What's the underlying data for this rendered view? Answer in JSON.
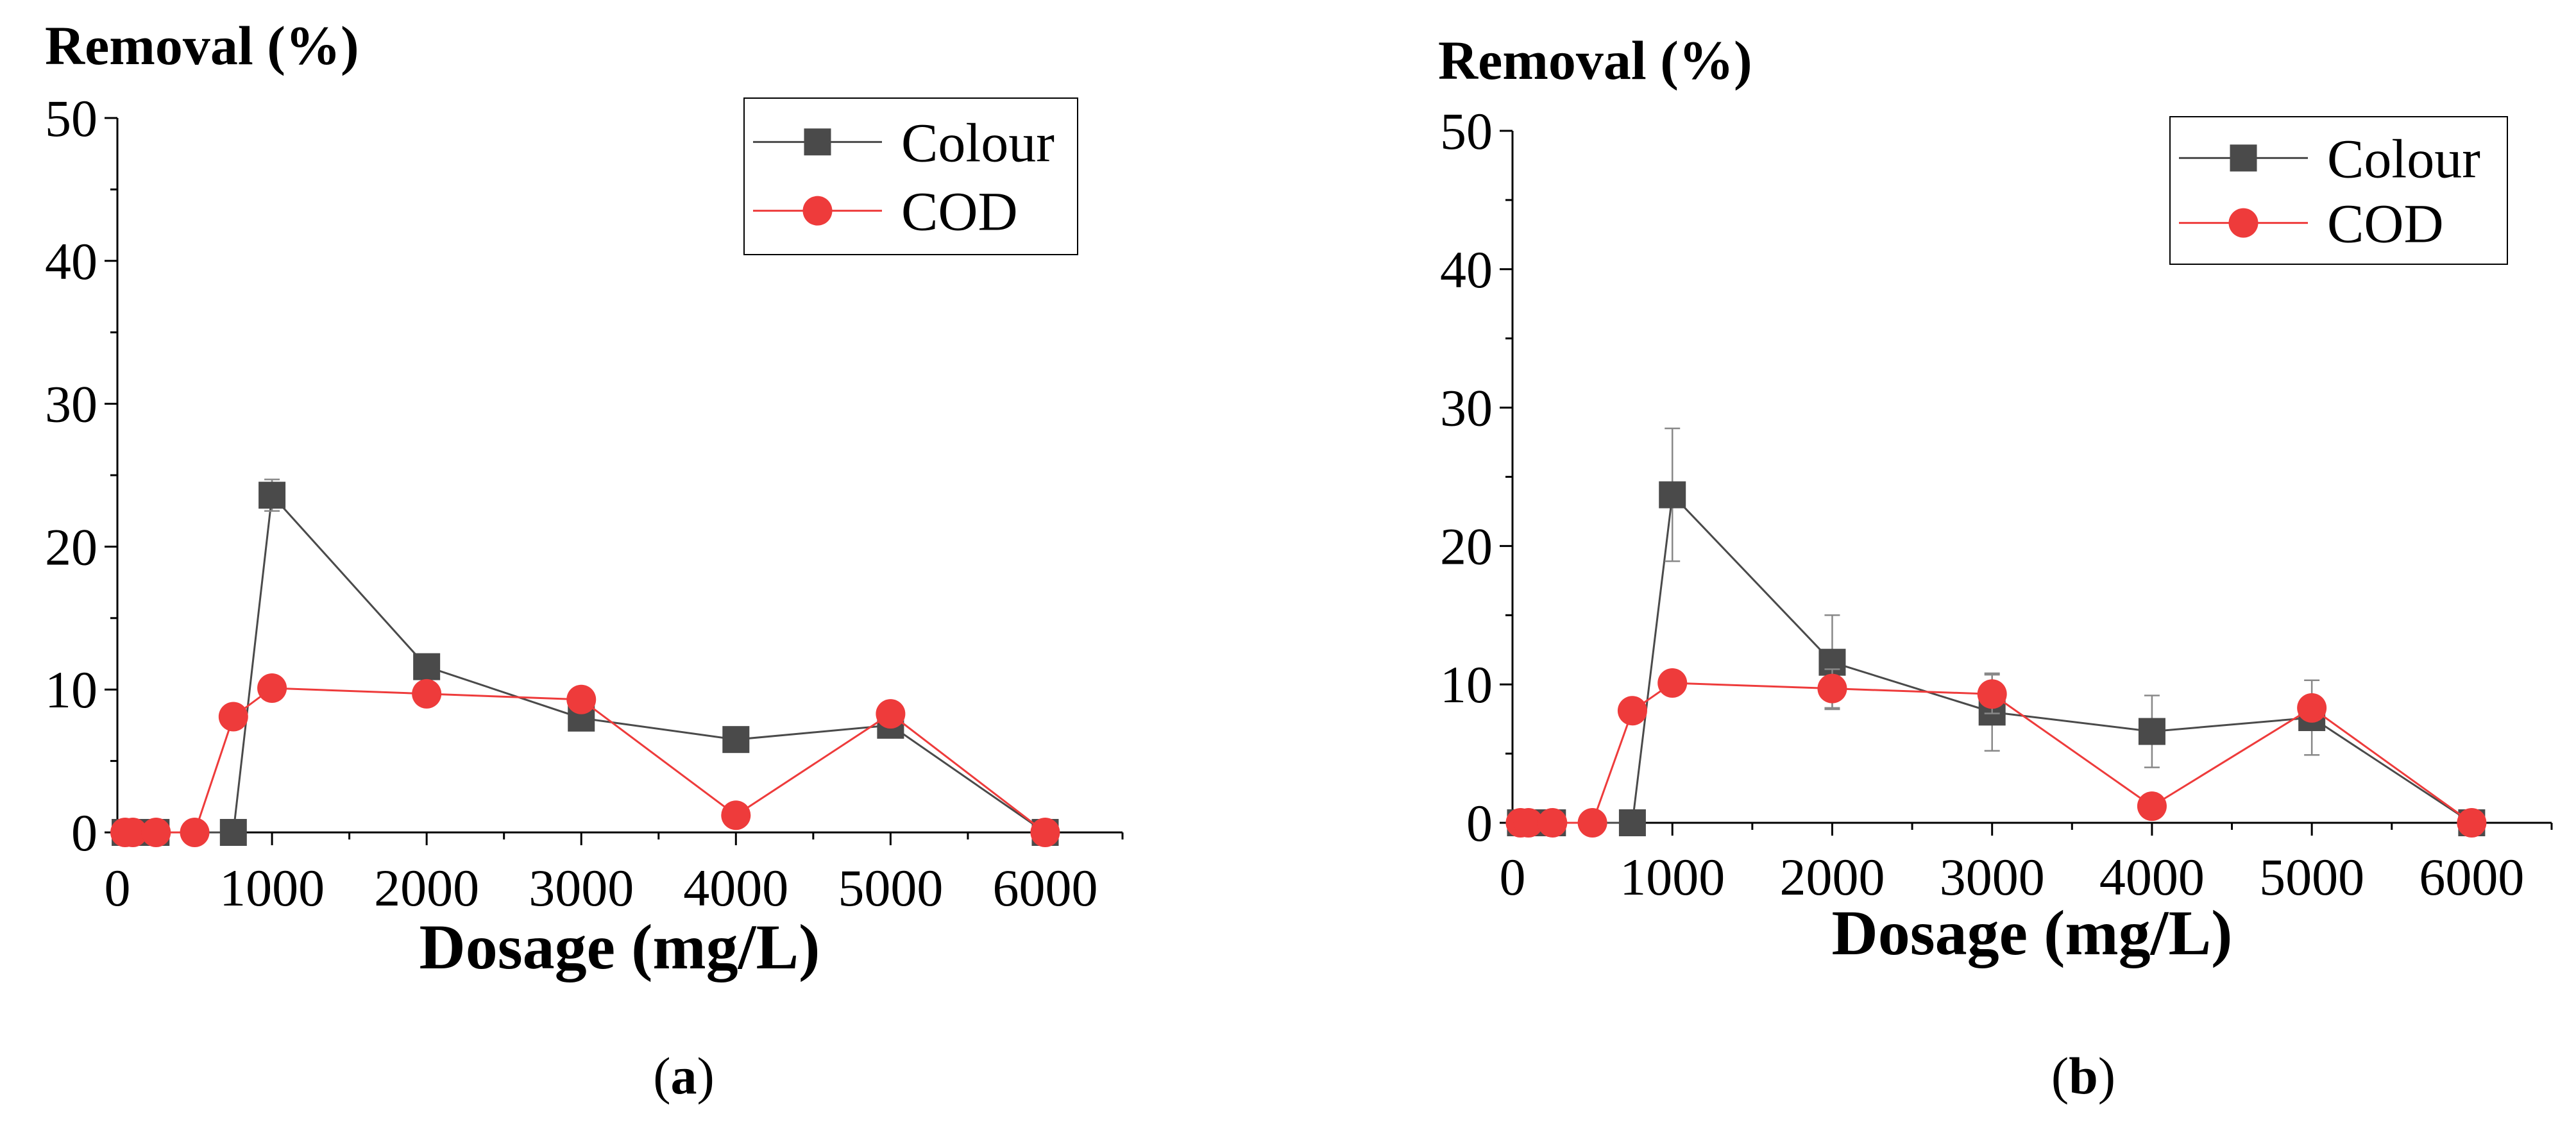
{
  "chart_data": [
    {
      "type": "line",
      "panel_label_prefix": "(",
      "panel_letter": "a",
      "panel_label_suffix": ")",
      "ylabel": "Removal (%)",
      "xlabel": "Dosage (mg/L)",
      "xlim": [
        0,
        6500
      ],
      "ylim": [
        0,
        50
      ],
      "xticks": [
        "0",
        "1000",
        "2000",
        "3000",
        "4000",
        "5000",
        "6000"
      ],
      "yticks": [
        "0",
        "10",
        "20",
        "30",
        "40",
        "50"
      ],
      "legend_position": "top-right",
      "series": [
        {
          "name": "Colour",
          "color": "#4a4a4a",
          "marker": "square",
          "points": [
            {
              "x": 50,
              "y": 0,
              "err": 0
            },
            {
              "x": 100,
              "y": 0,
              "err": 0
            },
            {
              "x": 250,
              "y": 0,
              "err": 0
            },
            {
              "x": 750,
              "y": 0,
              "err": 0
            },
            {
              "x": 1000,
              "y": 23.6,
              "err": 1.1
            },
            {
              "x": 2000,
              "y": 11.6,
              "err": 0
            },
            {
              "x": 3000,
              "y": 8.0,
              "err": 0
            },
            {
              "x": 4000,
              "y": 6.5,
              "err": 0
            },
            {
              "x": 5000,
              "y": 7.5,
              "err": 0
            },
            {
              "x": 6000,
              "y": 0,
              "err": 0
            }
          ]
        },
        {
          "name": "COD",
          "color": "#ee3b3b",
          "marker": "circle",
          "points": [
            {
              "x": 50,
              "y": 0,
              "err": 0
            },
            {
              "x": 100,
              "y": 0,
              "err": 0
            },
            {
              "x": 250,
              "y": 0,
              "err": 0
            },
            {
              "x": 500,
              "y": 0,
              "err": 0
            },
            {
              "x": 750,
              "y": 8.1,
              "err": 0
            },
            {
              "x": 1000,
              "y": 10.1,
              "err": 0
            },
            {
              "x": 2000,
              "y": 9.7,
              "err": 0
            },
            {
              "x": 3000,
              "y": 9.3,
              "err": 0
            },
            {
              "x": 4000,
              "y": 1.2,
              "err": 0
            },
            {
              "x": 5000,
              "y": 8.3,
              "err": 0
            },
            {
              "x": 6000,
              "y": 0,
              "err": 0
            }
          ]
        }
      ]
    },
    {
      "type": "line",
      "panel_label_prefix": "(",
      "panel_letter": "b",
      "panel_label_suffix": ")",
      "ylabel": "Removal (%)",
      "xlabel": "Dosage (mg/L)",
      "xlim": [
        0,
        6500
      ],
      "ylim": [
        0,
        50
      ],
      "xticks": [
        "0",
        "1000",
        "2000",
        "3000",
        "4000",
        "5000",
        "6000"
      ],
      "yticks": [
        "0",
        "10",
        "20",
        "30",
        "40",
        "50"
      ],
      "legend_position": "top-right",
      "series": [
        {
          "name": "Colour",
          "color": "#4a4a4a",
          "marker": "square",
          "points": [
            {
              "x": 50,
              "y": 0,
              "err": 0
            },
            {
              "x": 100,
              "y": 0,
              "err": 0
            },
            {
              "x": 250,
              "y": 0,
              "err": 0
            },
            {
              "x": 750,
              "y": 0,
              "err": 0
            },
            {
              "x": 1000,
              "y": 23.7,
              "err": 4.8
            },
            {
              "x": 2000,
              "y": 11.6,
              "err": 3.4
            },
            {
              "x": 3000,
              "y": 8.0,
              "err": 2.8
            },
            {
              "x": 4000,
              "y": 6.6,
              "err": 2.6
            },
            {
              "x": 5000,
              "y": 7.6,
              "err": 2.7
            },
            {
              "x": 6000,
              "y": 0,
              "err": 0
            }
          ]
        },
        {
          "name": "COD",
          "color": "#ee3b3b",
          "marker": "circle",
          "points": [
            {
              "x": 50,
              "y": 0,
              "err": 0
            },
            {
              "x": 100,
              "y": 0,
              "err": 0
            },
            {
              "x": 250,
              "y": 0,
              "err": 0
            },
            {
              "x": 500,
              "y": 0,
              "err": 0
            },
            {
              "x": 750,
              "y": 8.1,
              "err": 0
            },
            {
              "x": 1000,
              "y": 10.1,
              "err": 0
            },
            {
              "x": 2000,
              "y": 9.7,
              "err": 1.4
            },
            {
              "x": 3000,
              "y": 9.3,
              "err": 1.4
            },
            {
              "x": 4000,
              "y": 1.2,
              "err": 0
            },
            {
              "x": 5000,
              "y": 8.3,
              "err": 0
            },
            {
              "x": 6000,
              "y": 0,
              "err": 0
            }
          ]
        }
      ]
    }
  ]
}
